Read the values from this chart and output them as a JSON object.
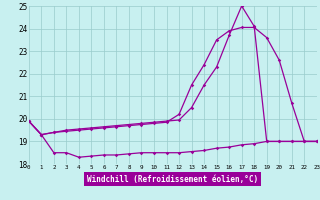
{
  "bg_color": "#c8f0f0",
  "line_color": "#990099",
  "grid_color": "#99cccc",
  "xlabel": "Windchill (Refroidissement éolien,°C)",
  "xmin": 0,
  "xmax": 23,
  "ymin": 18,
  "ymax": 25,
  "x_ticks": [
    0,
    1,
    2,
    3,
    4,
    5,
    6,
    7,
    8,
    9,
    10,
    11,
    12,
    13,
    14,
    15,
    16,
    17,
    18,
    19,
    20,
    21,
    22,
    23
  ],
  "y_ticks": [
    18,
    19,
    20,
    21,
    22,
    23,
    24,
    25
  ],
  "line1_x": [
    0,
    1,
    2,
    3,
    4,
    5,
    6,
    7,
    8,
    9,
    10,
    11,
    12,
    13,
    14,
    15,
    16,
    17,
    18,
    19,
    20,
    21,
    22,
    23
  ],
  "line1_y": [
    19.9,
    19.3,
    19.4,
    19.5,
    19.55,
    19.6,
    19.65,
    19.7,
    19.75,
    19.8,
    19.85,
    19.9,
    19.95,
    20.5,
    21.5,
    22.3,
    23.7,
    25.0,
    24.1,
    19.0,
    19.0,
    19.0,
    19.0,
    19.0
  ],
  "line2_x": [
    0,
    1,
    2,
    3,
    4,
    5,
    6,
    7,
    8,
    9,
    10,
    11,
    12,
    13,
    14,
    15,
    16,
    17,
    18,
    19,
    20,
    21,
    22,
    23
  ],
  "line2_y": [
    19.9,
    19.3,
    19.4,
    19.45,
    19.5,
    19.55,
    19.6,
    19.65,
    19.7,
    19.75,
    19.8,
    19.85,
    20.2,
    21.5,
    22.4,
    23.5,
    23.9,
    24.05,
    24.05,
    23.6,
    22.6,
    20.7,
    19.0,
    19.0
  ],
  "line3_x": [
    0,
    1,
    2,
    3,
    4,
    5,
    6,
    7,
    8,
    9,
    10,
    11,
    12,
    13,
    14,
    15,
    16,
    17,
    18,
    19,
    20,
    21,
    22,
    23
  ],
  "line3_y": [
    19.9,
    19.3,
    18.5,
    18.5,
    18.3,
    18.35,
    18.4,
    18.4,
    18.45,
    18.5,
    18.5,
    18.5,
    18.5,
    18.55,
    18.6,
    18.7,
    18.75,
    18.85,
    18.9,
    19.0,
    19.0,
    19.0,
    19.0,
    19.0
  ]
}
